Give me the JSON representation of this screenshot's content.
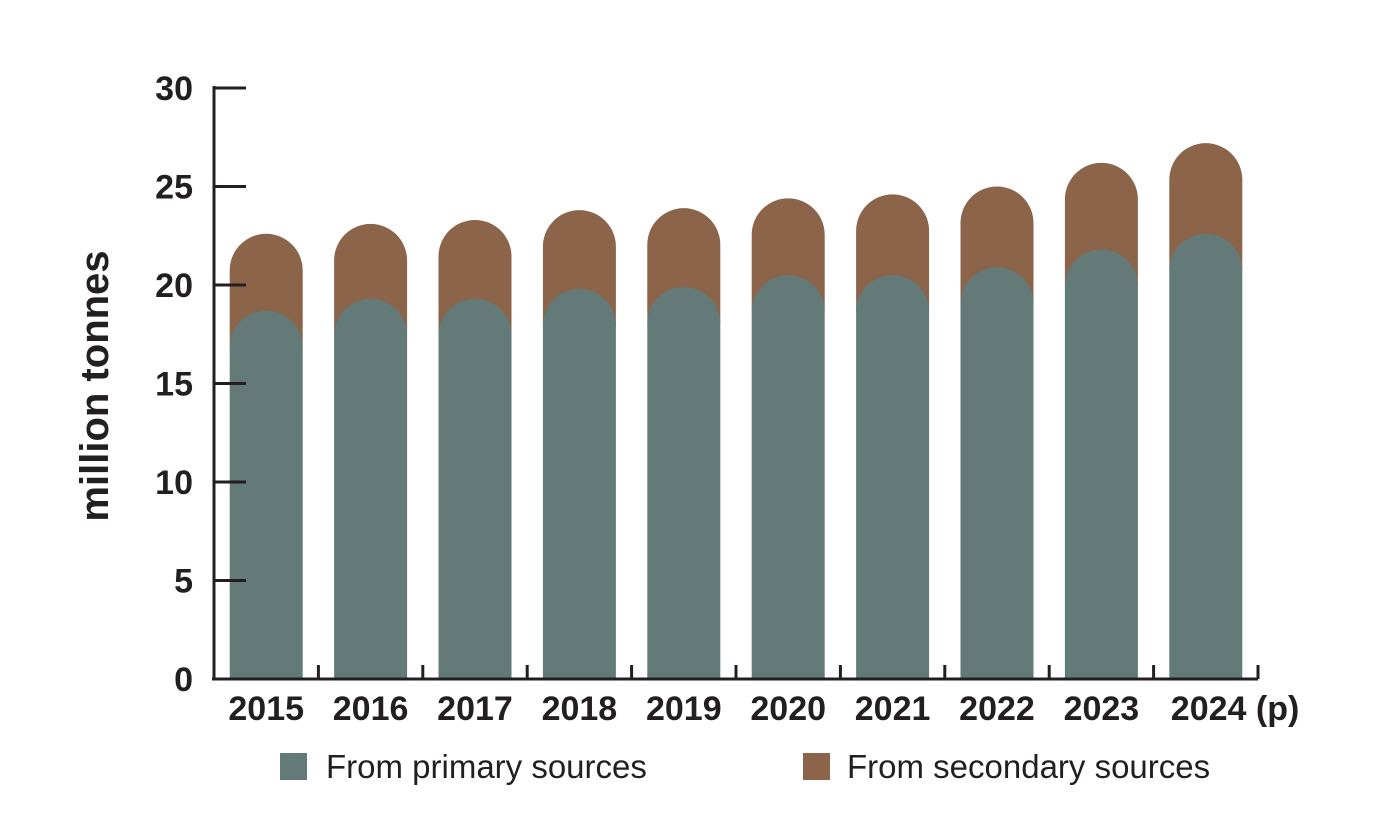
{
  "chart_data": {
    "type": "bar",
    "stacked": true,
    "categories": [
      "2015",
      "2016",
      "2017",
      "2018",
      "2019",
      "2020",
      "2021",
      "2022",
      "2023",
      "2024 (p)"
    ],
    "series": [
      {
        "name": "From primary sources",
        "values": [
          18.7,
          19.3,
          19.3,
          19.8,
          19.9,
          20.5,
          20.5,
          20.9,
          21.8,
          22.6
        ]
      },
      {
        "name": "From secondary sources",
        "values": [
          3.9,
          3.8,
          4.0,
          4.0,
          4.0,
          3.9,
          4.1,
          4.1,
          4.4,
          4.6
        ]
      }
    ],
    "colors": [
      "#637a79",
      "#8b6449"
    ],
    "title": "",
    "xlabel": "",
    "ylabel": "million tonnes",
    "ylim": [
      0,
      30
    ],
    "yticks": [
      "0",
      "5",
      "10",
      "15",
      "20",
      "25",
      "30"
    ],
    "grid": false,
    "legend": "bottom"
  }
}
